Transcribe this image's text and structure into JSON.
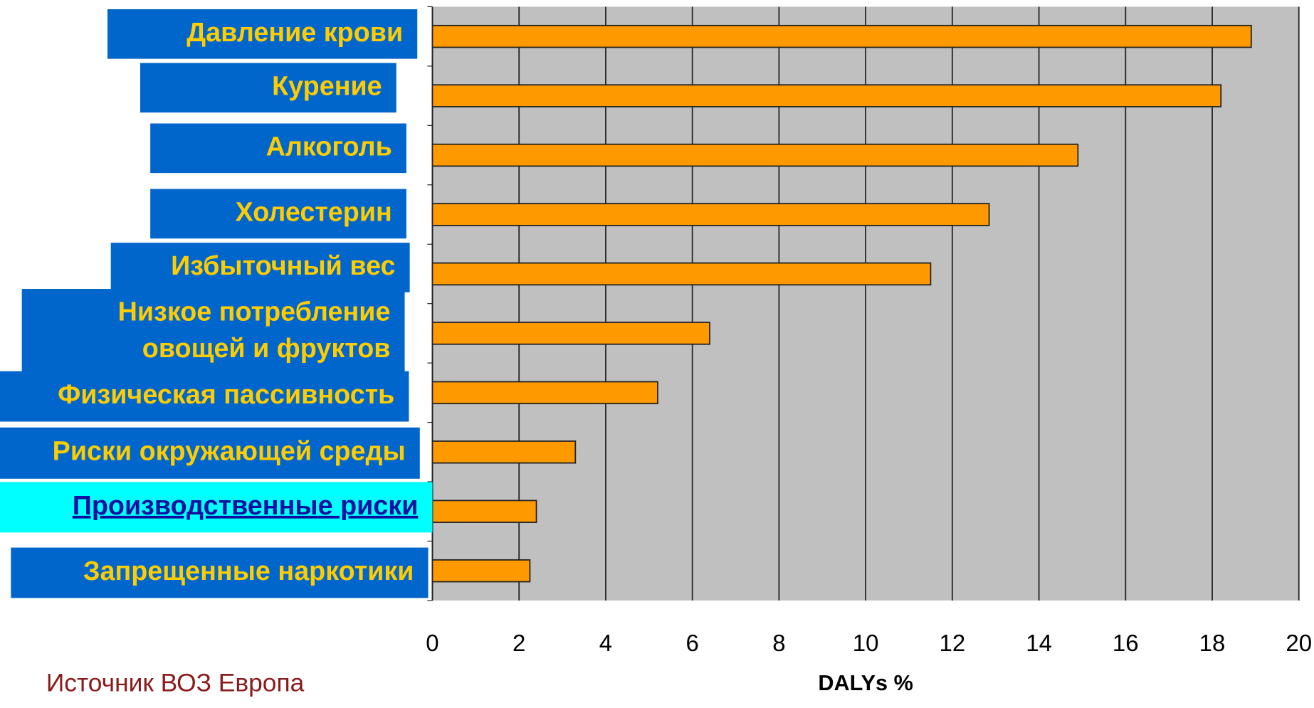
{
  "chart_data": {
    "type": "barh",
    "categories": [
      "Давление крови",
      "Курение",
      "Алкоголь",
      "Холестерин",
      "Избыточный вес",
      "Низкое потребление овощей и фруктов",
      "Физическая пассивность",
      "Риски окружающей среды",
      "Производственные  риски",
      "Запрещенные наркотики"
    ],
    "values": [
      18.9,
      18.2,
      14.9,
      12.85,
      11.5,
      6.4,
      5.2,
      3.3,
      2.4,
      2.25
    ],
    "color": "#ff9900",
    "xlabel": "DALYs %",
    "xlim": [
      0,
      20
    ],
    "xticks": [
      0,
      2,
      4,
      6,
      8,
      10,
      12,
      14,
      16,
      18,
      20
    ],
    "grid": true,
    "source": "Источник ВОЗ Европа"
  }
}
